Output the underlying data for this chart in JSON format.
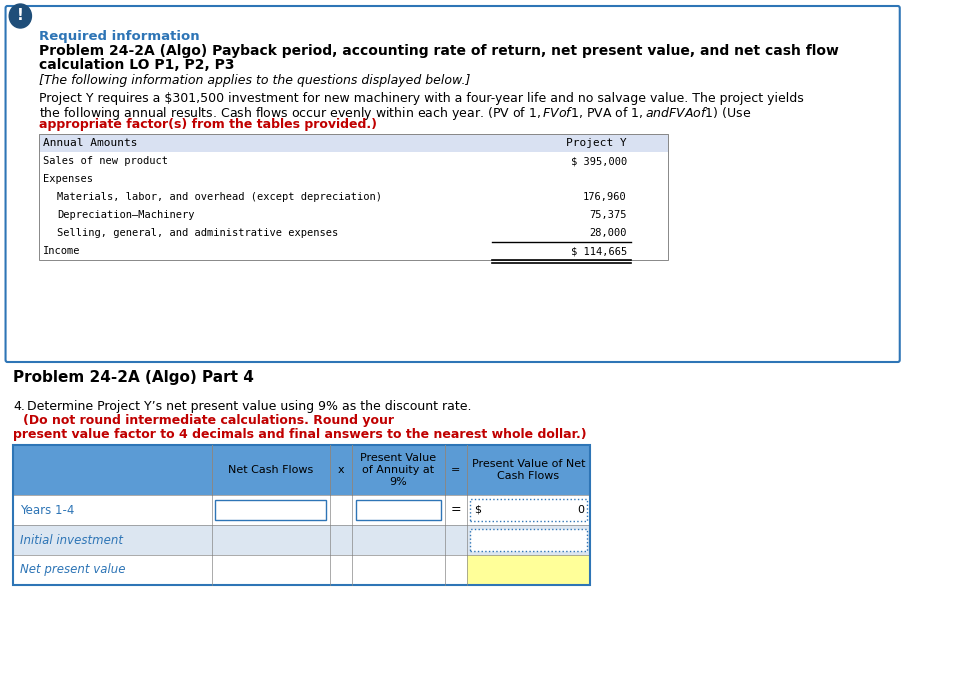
{
  "page_bg": "#ffffff",
  "outer_border_color": "#2e75b6",
  "section1_title": "Required information",
  "section1_title_color": "#2e75b6",
  "problem_title_line1": "Problem 24-2A (Algo) Payback period, accounting rate of return, net present value, and net cash flow",
  "problem_title_line2": "calculation LO P1, P2, P3",
  "italic_text": "[The following information applies to the questions displayed below.]",
  "body_text_line1": "Project Y requires a $301,500 investment for new machinery with a four-year life and no salvage value. The project yields",
  "body_text_line2": "the following annual results. Cash flows occur evenly within each year. (PV of $1, FV of $1, PVA of $1, and FVA of $1) (Use",
  "body_text_bold": "appropriate factor(s) from the tables provided.)",
  "table1_header_bg": "#d9e1f2",
  "table1_col1_header": "Annual Amounts",
  "table1_col2_header": "Project Y",
  "table1_rows": [
    {
      "label": "Sales of new product",
      "indent": 0,
      "value": "$ 395,000"
    },
    {
      "label": "Expenses",
      "indent": 0,
      "value": ""
    },
    {
      "label": "Materials, labor, and overhead (except depreciation)",
      "indent": 1,
      "value": "176,960"
    },
    {
      "label": "Depreciation–Machinery",
      "indent": 1,
      "value": "75,375"
    },
    {
      "label": "Selling, general, and administrative expenses",
      "indent": 1,
      "value": "28,000"
    },
    {
      "label": "Income",
      "indent": 0,
      "value": "$ 114,665"
    }
  ],
  "section2_title": "Problem 24-2A (Algo) Part 4",
  "question_num": "4.",
  "question_text_normal": " Determine Project Y’s net present value using 9% as the discount rate. ",
  "question_text_bold_red_line1": "(Do not round intermediate calculations. Round your",
  "question_text_bold_red_line2": "present value factor to 4 decimals and final answers to the nearest whole dollar.)",
  "table2_header_bg": "#5b9bd5",
  "table2_col_headers": [
    "",
    "Net Cash Flows",
    "x",
    "Present Value\nof Annuity at\n9%",
    "=",
    "Present Value of Net\nCash Flows"
  ],
  "table2_rows": [
    {
      "label": "Years 1-4",
      "label_color": "#2e75b6",
      "pv_net": "0",
      "pv_net_prefix": "$"
    },
    {
      "label": "Initial investment",
      "label_color": "#2e75b6",
      "pv_net": "",
      "pv_net_prefix": ""
    },
    {
      "label": "Net present value",
      "label_color": "#2e75b6",
      "pv_net": "",
      "pv_net_prefix": ""
    }
  ],
  "table2_row_bgs": [
    "#ffffff",
    "#dce6f1",
    "#ffffff"
  ],
  "table2_last_cell_bg": "#ffff99",
  "icon_bg": "#1f4e79",
  "icon_text": "!",
  "icon_text_color": "#ffffff"
}
